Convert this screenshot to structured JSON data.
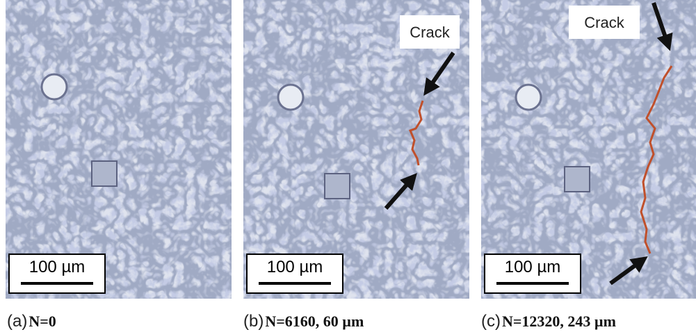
{
  "panels": [
    {
      "scale_label": "100 µm",
      "caption_letter": "(a)",
      "caption_text": "N=0"
    },
    {
      "scale_label": "100 µm",
      "crack_label": "Crack",
      "caption_letter": "(b)",
      "caption_text": "N=6160, 60 µm"
    },
    {
      "scale_label": "100 µm",
      "crack_label": "Crack",
      "caption_letter": "(c)",
      "caption_text": "N=12320, 243 µm"
    }
  ]
}
